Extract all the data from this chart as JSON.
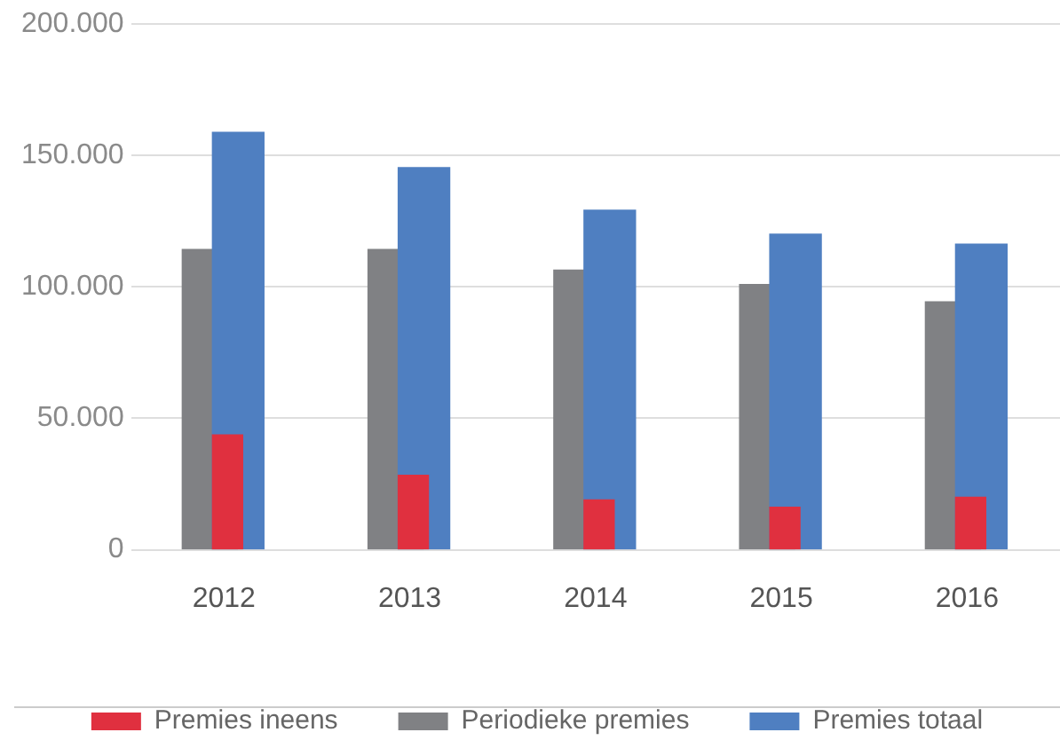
{
  "chart_data": {
    "type": "bar",
    "categories": [
      "2012",
      "2013",
      "2014",
      "2015",
      "2016"
    ],
    "series": [
      {
        "name": "Premies ineens",
        "color": "#e0303f",
        "values": [
          43700,
          28300,
          19000,
          16200,
          20000
        ]
      },
      {
        "name": "Periodieke premies",
        "color": "#808184",
        "values": [
          114300,
          114300,
          106400,
          100900,
          94300
        ]
      },
      {
        "name": "Premies totaal",
        "color": "#4f7fc1",
        "values": [
          158800,
          145400,
          129200,
          120100,
          116300
        ]
      }
    ],
    "ylim": [
      0,
      200000
    ],
    "yticks": [
      {
        "value": 0,
        "label": "0"
      },
      {
        "value": 50000,
        "label": "50.000"
      },
      {
        "value": 100000,
        "label": "100.000"
      },
      {
        "value": 150000,
        "label": "150.000"
      },
      {
        "value": 200000,
        "label": "200.000"
      }
    ],
    "grid": "y",
    "legend": "bottom"
  }
}
